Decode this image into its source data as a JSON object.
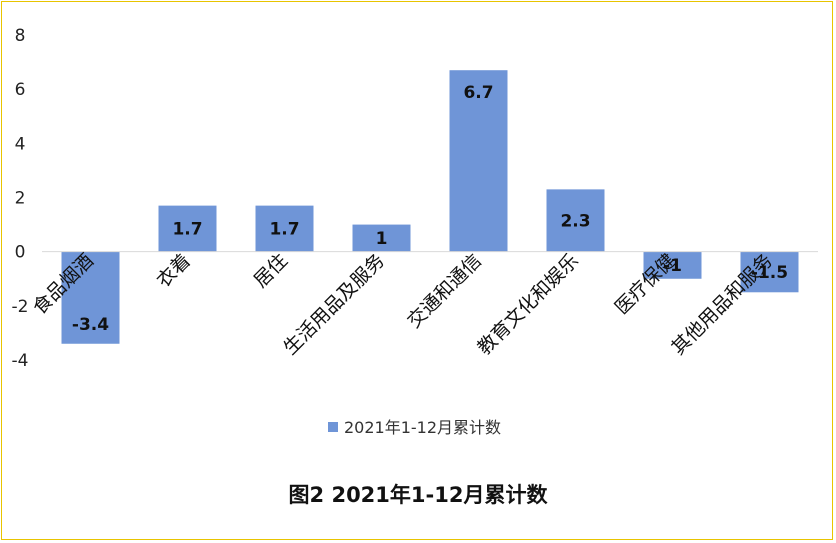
{
  "chart_data": {
    "type": "bar",
    "title": "图2 2021年1-12月累计数",
    "categories": [
      "食品烟酒",
      "衣着",
      "居住",
      "生活用品及服务",
      "交通和通信",
      "教育文化和娱乐",
      "医疗保健",
      "其他用品和服务"
    ],
    "series": [
      {
        "name": "2021年1-12月累计数",
        "values": [
          -3.4,
          1.7,
          1.7,
          1.0,
          6.7,
          2.3,
          -1.0,
          -1.5
        ],
        "labels": [
          "-3.4",
          "1.7",
          "1.7",
          "1",
          "6.7",
          "2.3",
          "-1",
          "-1.5"
        ]
      }
    ],
    "yticks": [
      "8",
      "6",
      "4",
      "2",
      "0",
      "-2",
      "-4"
    ],
    "ylim": [
      -4,
      8
    ],
    "grid": false,
    "legend_position": "bottom",
    "bar_color": "#6f95d7"
  }
}
